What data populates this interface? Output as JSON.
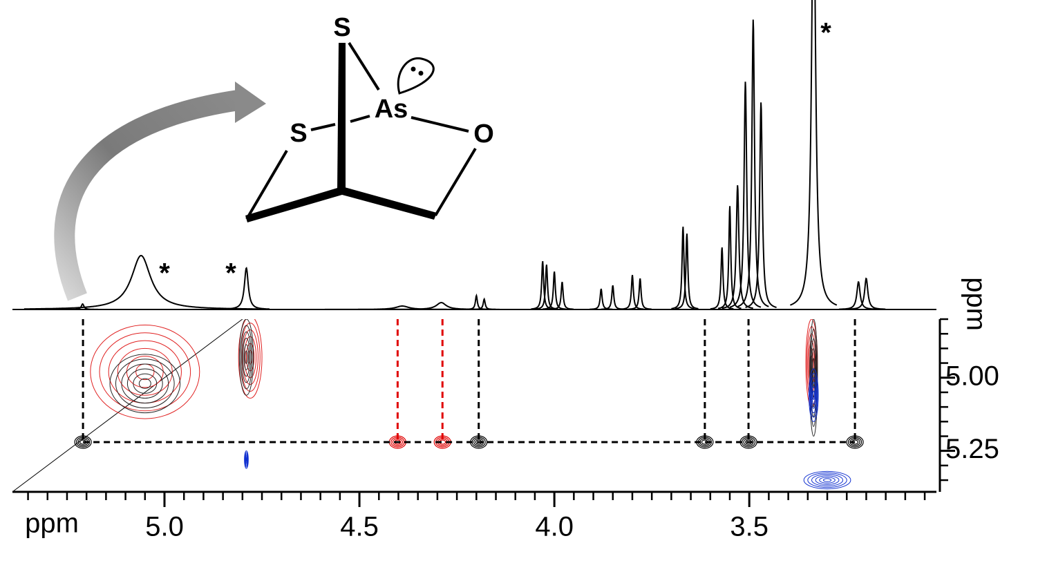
{
  "chart_data": {
    "type": "nmr-2d",
    "x_label": "ppm",
    "y_label": "ppm",
    "xlim": [
      5.39,
      3.02
    ],
    "xticks": [
      {
        "value": 5,
        "label": "5.0"
      },
      4.5,
      {
        "value": 4,
        "label": "4.0"
      },
      3.5
    ],
    "xminor": 0.05,
    "ylim": [
      4.8,
      5.39
    ],
    "yticks": [
      {
        "value": 5,
        "label": "5.00"
      },
      5.25
    ],
    "yminor": 0.05,
    "trace_color": "#000000",
    "peaks": {
      "x": [
        5.21,
        5.06,
        4.79,
        4.39,
        4.29,
        4.2,
        4.18,
        4.03,
        4.02,
        4.0,
        3.98,
        3.88,
        3.85,
        3.8,
        3.78,
        3.67,
        3.66,
        3.57,
        3.55,
        3.53,
        3.51,
        3.49,
        3.47,
        3.335,
        3.22,
        3.2
      ],
      "height": [
        8,
        78,
        60,
        5,
        10,
        20,
        15,
        70,
        65,
        55,
        40,
        30,
        35,
        50,
        45,
        120,
        110,
        90,
        150,
        180,
        330,
        420,
        300,
        640,
        40,
        45
      ],
      "width": [
        0.004,
        0.03,
        0.006,
        0.02,
        0.015,
        0.003,
        0.003,
        0.003,
        0.003,
        0.003,
        0.003,
        0.003,
        0.003,
        0.003,
        0.003,
        0.003,
        0.003,
        0.003,
        0.003,
        0.004,
        0.004,
        0.004,
        0.004,
        0.006,
        0.005,
        0.005
      ]
    },
    "crosspeaks": {
      "y": 5.22,
      "x": [
        5.209,
        4.402,
        4.287,
        4.194,
        3.614,
        3.502,
        3.229
      ],
      "colors": [
        "#000000",
        "#e00000",
        "#e00000",
        "#000000",
        "#000000",
        "#000000",
        "#000000"
      ]
    },
    "contours": [
      {
        "x": 5.05,
        "y": 4.98,
        "rx": 0.14,
        "ry": 0.16,
        "color": "#e02020"
      },
      {
        "x": 5.05,
        "y": 5.02,
        "rx": 0.09,
        "ry": 0.1,
        "color": "#222222"
      },
      {
        "x": 4.78,
        "y": 4.93,
        "rx": 0.03,
        "ry": 0.14,
        "color": "#e02020"
      },
      {
        "x": 4.79,
        "y": 4.93,
        "rx": 0.018,
        "ry": 0.13,
        "color": "#222222"
      },
      {
        "x": 4.79,
        "y": 5.28,
        "rx": 0.005,
        "ry": 0.03,
        "color": "#1030d0"
      },
      {
        "x": 3.34,
        "y": 4.95,
        "rx": 0.015,
        "ry": 0.15,
        "color": "#e02020"
      },
      {
        "x": 3.335,
        "y": 5.0,
        "rx": 0.01,
        "ry": 0.2,
        "color": "#222222"
      },
      {
        "x": 3.335,
        "y": 5.06,
        "rx": 0.012,
        "ry": 0.09,
        "color": "#1030d0"
      },
      {
        "x": 3.3,
        "y": 5.35,
        "rx": 0.06,
        "ry": 0.03,
        "color": "#1030d0"
      }
    ],
    "annotations": [
      "*",
      "*",
      "*"
    ]
  },
  "structure": {
    "atoms": [
      "S",
      "As",
      "S",
      "O"
    ]
  }
}
